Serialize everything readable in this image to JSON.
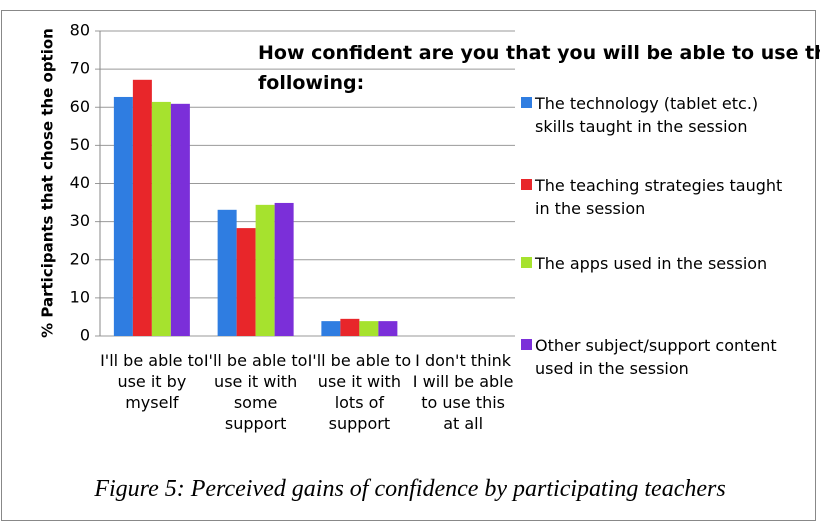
{
  "chart_data": {
    "type": "bar",
    "title": "How confident are you that you will be able to use the following:",
    "ylabel": "% Participants  that chose the option",
    "caption": "Figure 5: Perceived gains of confidence by participating teachers",
    "categories": [
      "I'll be able to use it by myself",
      "I'll be able to use it with some support",
      "I'll be able to use it with lots of support",
      "I don't think I will be able to use this at all"
    ],
    "series": [
      {
        "name": "The technology (tablet etc.) skills taught in the session",
        "color": "#2f7de1",
        "values": [
          62.7,
          33.1,
          3.9,
          0
        ]
      },
      {
        "name": " The teaching strategies taught in the session",
        "color": "#e8262a",
        "values": [
          67.2,
          28.3,
          4.5,
          0
        ]
      },
      {
        "name": "The apps used in the session",
        "color": "#a6e22e",
        "values": [
          61.4,
          34.4,
          3.9,
          0
        ]
      },
      {
        "name": "Other subject/support content used in the session",
        "color": "#7b2fd9",
        "values": [
          60.9,
          34.9,
          3.9,
          0
        ]
      }
    ],
    "ylim": [
      0,
      80
    ],
    "yticks": [
      0,
      10,
      20,
      30,
      40,
      50,
      60,
      70,
      80
    ],
    "grid": true
  }
}
